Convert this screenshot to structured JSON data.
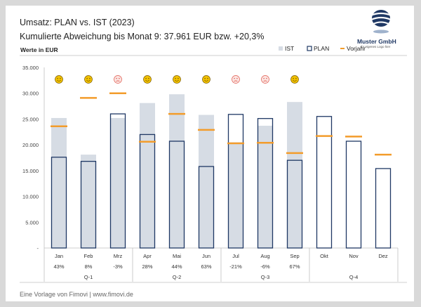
{
  "header": {
    "title": "Umsatz: PLAN vs. IST (2023)",
    "subtitle": "Kumulierte Abweichung bis Monat 9: 37.961  EUR bzw. +20,3%"
  },
  "logo": {
    "name": "Muster GmbH",
    "tagline": "Ihr eigenes Logo hier"
  },
  "footer": {
    "text": "Eine Vorlage von Fimovi  |  www.fimovi.de"
  },
  "colors": {
    "ist": "#d6dce4",
    "plan": "#1f3864",
    "vorjahr": "#f39c2b",
    "happy": "#f2c200",
    "sad": "#e05a4f"
  },
  "chart_data": {
    "type": "bar",
    "ylabel": "Werte in EUR",
    "ylim": [
      0,
      35000
    ],
    "ytick_values": [
      0,
      5000,
      10000,
      15000,
      20000,
      25000,
      30000,
      35000
    ],
    "ytick_labels": [
      "-",
      "5.000",
      "10.000",
      "15.000",
      "20.000",
      "25.000",
      "30.000",
      "35.000"
    ],
    "categories": [
      "Jan",
      "Feb",
      "Mrz",
      "Apr",
      "Mai",
      "Jun",
      "Jul",
      "Aug",
      "Sep",
      "Okt",
      "Nov",
      "Dez"
    ],
    "legend": [
      "IST",
      "PLAN",
      "Vorjahr"
    ],
    "legend_position": "top-right",
    "series": [
      {
        "name": "IST",
        "values": [
          25200,
          18100,
          25200,
          28100,
          29800,
          25800,
          20500,
          23700,
          28300,
          null,
          null,
          null
        ]
      },
      {
        "name": "PLAN",
        "values": [
          17600,
          16800,
          26000,
          22000,
          20700,
          15800,
          25900,
          25100,
          17000,
          25500,
          20700,
          15400
        ]
      },
      {
        "name": "Vorjahr",
        "values": [
          23600,
          29100,
          30000,
          20600,
          26000,
          22900,
          20300,
          20400,
          18400,
          21700,
          21600,
          18100
        ]
      }
    ],
    "deviation_labels": [
      "43%",
      "8%",
      "-3%",
      "28%",
      "44%",
      "63%",
      "-21%",
      "-6%",
      "67%",
      "",
      "",
      ""
    ],
    "mood": [
      "happy",
      "happy",
      "sad",
      "happy",
      "happy",
      "happy",
      "sad",
      "sad",
      "happy",
      null,
      null,
      null
    ],
    "quarters": [
      "Q-1",
      "Q-2",
      "Q-3",
      "Q-4"
    ]
  }
}
